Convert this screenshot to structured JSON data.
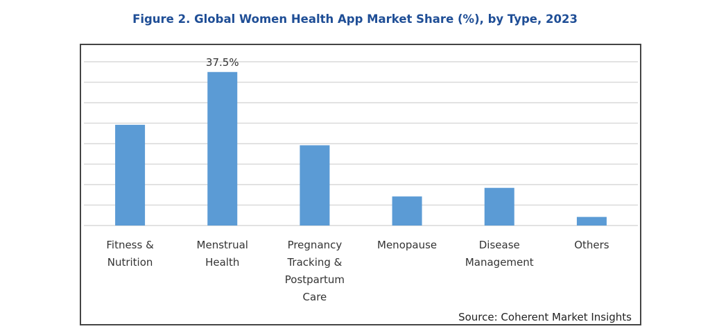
{
  "chart_data": {
    "type": "bar",
    "title": "Figure 2. Global Women Health App Market Share (%), by Type, 2023",
    "categories": [
      [
        "Fitness &",
        "Nutrition"
      ],
      [
        "Menstrual",
        "Health"
      ],
      [
        "Pregnancy",
        "Tracking &",
        "Postpartum",
        "Care"
      ],
      [
        "Menopause"
      ],
      [
        "Disease",
        "Management"
      ],
      [
        "Others"
      ]
    ],
    "values": [
      24.6,
      37.5,
      19.6,
      7.1,
      9.2,
      2.1
    ],
    "data_labels": [
      "",
      "37.5%",
      "",
      "",
      "",
      ""
    ],
    "xlabel": "",
    "ylabel": "",
    "ylim": [
      0,
      40
    ],
    "ytick_step": 5,
    "y_tick_labels_shown": false,
    "grid": true,
    "bar_color": "#5b9bd5",
    "title_color": "#1f4e96",
    "source": "Source: Coherent Market Insights"
  }
}
